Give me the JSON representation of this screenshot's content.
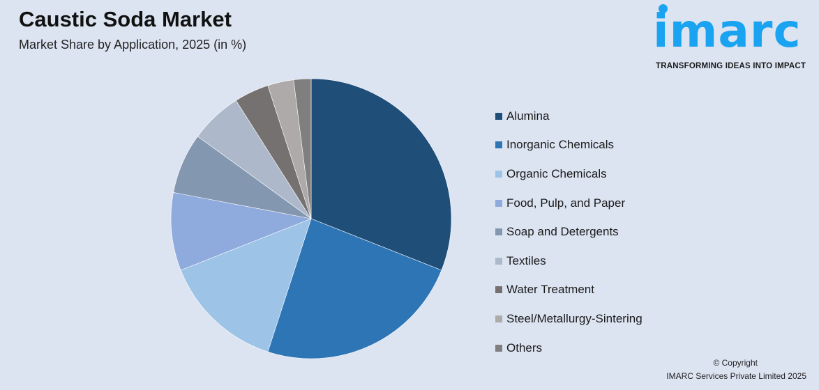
{
  "header": {
    "title": "Caustic Soda Market",
    "subtitle": "Market Share by Application, 2025 (in %)"
  },
  "logo": {
    "word": "imarc",
    "tagline": "TRANSFORMING IDEAS INTO IMPACT"
  },
  "footer": {
    "copyright": "© Copyright",
    "company": "IMARC Services Private Limited 2025"
  },
  "chart_data": {
    "type": "pie",
    "title": "Caustic Soda Market",
    "subtitle": "Market Share by Application, 2025 (in %)",
    "legend_position": "right",
    "categories": [
      "Alumina",
      "Inorganic Chemicals",
      "Organic Chemicals",
      "Food, Pulp, and Paper",
      "Soap and Detergents",
      "Textiles",
      "Water Treatment",
      "Steel/Metallurgy-Sintering",
      "Others"
    ],
    "values": [
      31,
      24,
      14,
      9,
      7,
      6,
      4,
      3,
      2
    ],
    "colors": [
      "#1f4e79",
      "#2e75b6",
      "#9dc3e6",
      "#8faadc",
      "#8497b0",
      "#adb9ca",
      "#767171",
      "#aeaaaa",
      "#7f7f7f"
    ]
  }
}
